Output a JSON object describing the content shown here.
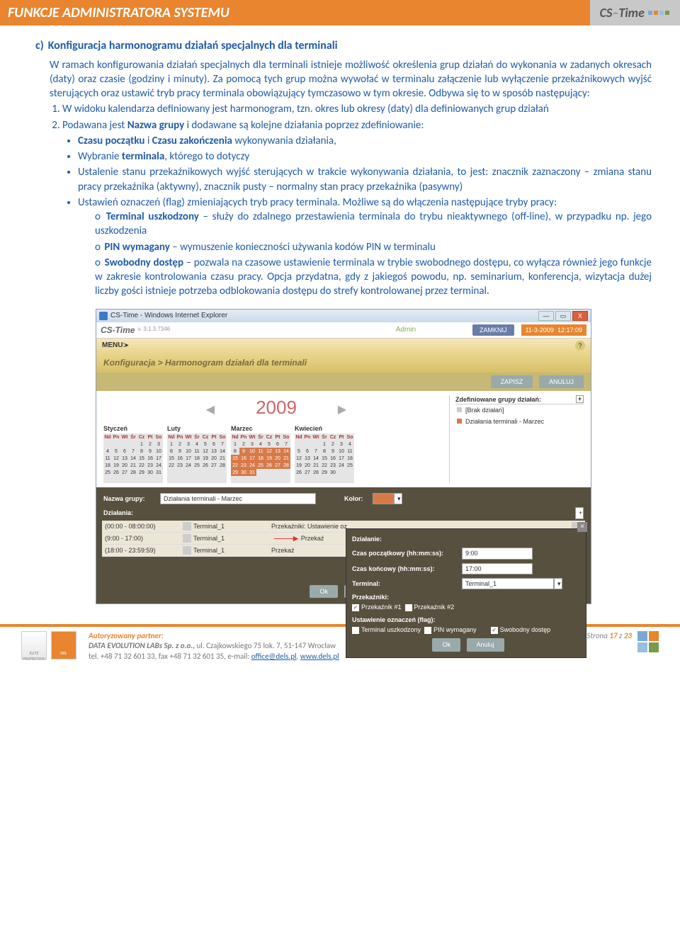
{
  "header": {
    "title": "FUNKCJE ADMINISTRATORA SYSTEMU",
    "logo": "CS-Time"
  },
  "section": {
    "letter": "c)",
    "title": "Konfiguracja harmonogramu działań specjalnych dla terminali",
    "p1": "W ramach konfigurowania działań specjalnych dla terminali istnieje możliwość określenia grup działań do wykonania w zadanych okresach (daty) oraz czasie (godziny i minuty). Za pomocą tych grup można wywołać w terminalu załączenie lub wyłączenie przekaźnikowych wyjść sterujących oraz ustawić tryb pracy terminala obowiązujący tymczasowo w tym okresie. Odbywa się to w sposób następujący:",
    "li1": "W widoku kalendarza definiowany jest harmonogram, tzn. okres lub okresy (daty) dla definiowanych grup działań",
    "li2_lead": "Podawana jest ",
    "li2_b": "Nazwa grupy",
    "li2_tail": " i dodawane są kolejne działania poprzez zdefiniowanie:",
    "b1a": "Czasu początku",
    "b1mid": " i ",
    "b1b": "Czasu zakończenia",
    "b1tail": " wykonywania działania,",
    "b2a": "Wybranie ",
    "b2b": "terminala",
    "b2c": ", którego to dotyczy",
    "b3": "Ustalenie stanu przekaźnikowych wyjść sterujących w trakcie wykonywania działania, to jest: znacznik zaznaczony – zmiana stanu pracy przekaźnika (aktywny), znacznik pusty – normalny stan pracy przekaźnika (pasywny)",
    "b4": "Ustawień oznaczeń (flag) zmieniających tryb pracy terminala. Możliwe są do włączenia następujące tryby pracy:",
    "s1a": "Terminal uszkodzony",
    "s1b": " – służy do zdalnego przestawienia terminala do trybu nieaktywnego (off-line), w przypadku np. jego uszkodzenia",
    "s2a": "PIN wymagany",
    "s2b": " – wymuszenie konieczności używania kodów PIN w terminalu",
    "s3a": "Swobodny dostęp",
    "s3b": " – pozwala na czasowe ustawienie terminala w trybie swobodnego dostępu, co wyłącza również jego funkcje w zakresie kontrolowania czasu pracy. Opcja przydatna, gdy z jakiegoś powodu, np. seminarium, konferencja, wizytacja dużej liczby gości istnieje potrzeba odblokowania dostępu do strefy kontrolowanej przez terminal."
  },
  "shot": {
    "win_title": "CS-Time - Windows Internet Explorer",
    "app_logo": "CS-Time",
    "ver": "v. 3.1.3.7346",
    "user": "Admin",
    "btn_close": "ZAMKNIJ",
    "date": "11-3-2009",
    "time": "12:17:09",
    "menu": "MENU: ",
    "breadcrumb": "Konfiguracja > Harmonogram działań dla terminali",
    "btn_save": "ZAPISZ",
    "btn_cancel": "ANULUJ",
    "year": "2009",
    "months": [
      "Styczeń",
      "Luty",
      "Marzec",
      "Kwiecień"
    ],
    "dow": "Nd Pn Wt Śr Cz Pt So",
    "groups_head": "Zdefiniowane grupy działań:",
    "grp1": "[Brak działań]",
    "grp2": "Działania terminali - Marzec",
    "name_label": "Nazwa grupy:",
    "name_value": "Działania terminali - Marzec",
    "color_label": "Kolor:",
    "actions_label": "Działania:",
    "rows": [
      {
        "t": "(00:00 - 08:00:00)",
        "term": "Terminal_1",
        "p": "Przekaźniki: Ustawienie oz"
      },
      {
        "t": "(9:00 - 17:00)",
        "term": "Terminal_1",
        "p": "Przekaź"
      },
      {
        "t": "(18:00 - 23:59:59)",
        "term": "Terminal_1",
        "p": "Przekaź"
      }
    ],
    "ok": "Ok",
    "anul": "Anuluj",
    "popup": {
      "title": "Działanie:",
      "l1": "Czas początkowy (hh:mm:ss):",
      "v1": "9:00",
      "l2": "Czas końcowy (hh:mm:ss):",
      "v2": "17:00",
      "l3": "Terminal:",
      "v3": "Terminal_1",
      "sec1": "Przekaźniki:",
      "c1": "Przekaźnik #1",
      "c2": "Przekaźnik #2",
      "sec2": "Ustawienie oznaczeń (flag):",
      "f1": "Terminal uszkodzony",
      "f2": "PIN wymagany",
      "f3": "Swobodny dostęp"
    }
  },
  "footer": {
    "ap": "Autoryzowany partner:",
    "company": "DATA EVOLUTION LABs Sp. z o.o., ",
    "addr": "ul. Czajkowskiego 75 lok. 7, 51-147 Wrocław",
    "tel": "tel. +48 71 32 601 33, fax +48 71 32 601 35, e-mail: ",
    "email": "office@dels.pl",
    "sep": ", ",
    "url": "www.dels.pl",
    "page_label": "Strona ",
    "page_cur": "17",
    "page_of": " z ",
    "page_tot": "23"
  },
  "colors": {
    "accent": "#e8852e",
    "link": "#1f5ba8"
  }
}
